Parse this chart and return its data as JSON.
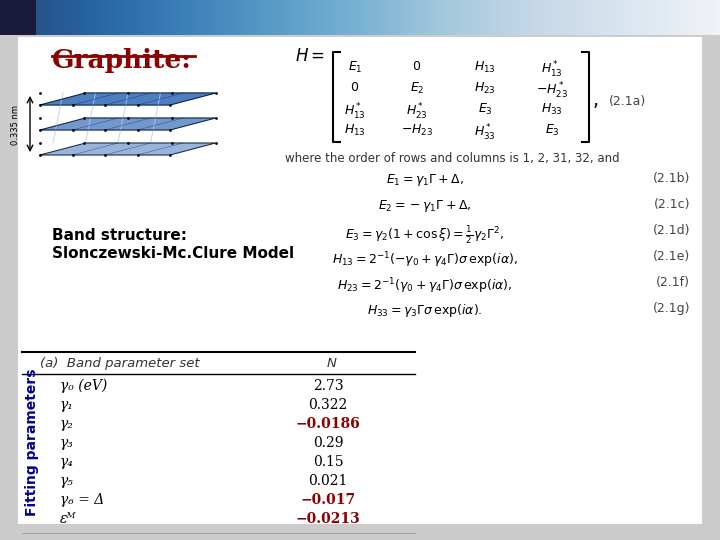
{
  "title": "Graphite:",
  "graphite_label_color": "#8B0000",
  "band_structure_label": "Band structure:\nSlonczewski-Mc.Clure Model",
  "fitting_parameters_label": "Fitting parameters",
  "fitting_label_color": "#00008B",
  "table_header_col1": "(a)  Band parameter set",
  "table_header_col2": "N",
  "table_rows": [
    [
      "γ₀ (eV)",
      "2.73",
      false
    ],
    [
      "γ₁",
      "0.322",
      false
    ],
    [
      "γ₂",
      "−0.0186",
      true
    ],
    [
      "γ₃",
      "0.29",
      false
    ],
    [
      "γ₄",
      "0.15",
      false
    ],
    [
      "γ₅",
      "0.021",
      false
    ],
    [
      "γ₆ = Δ",
      "−0.017",
      true
    ],
    [
      "εᴹ",
      "−0.0213",
      true
    ]
  ],
  "negative_color": "#8B0000",
  "positive_color": "#000000",
  "banner_dark_color": "#1a1a3a",
  "banner_light_color": "#8899bb",
  "white_bg": "#ffffff",
  "slide_bg": "#cccccc"
}
